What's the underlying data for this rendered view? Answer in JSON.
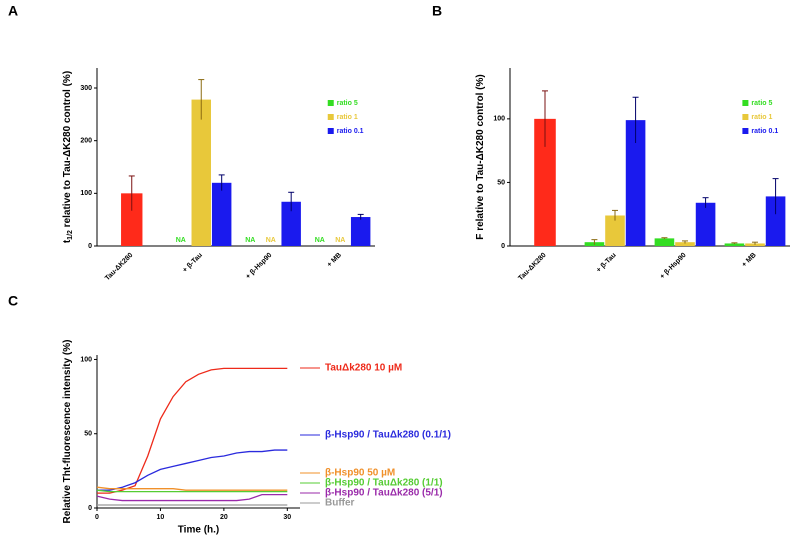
{
  "chart_data": [
    {
      "panel": "A",
      "type": "bar",
      "ylabel": "t",
      "ylabel_sub": "1/2",
      "ylabel_rest": " relative to Tau-ΔK280 control (%)",
      "categories": [
        "Tau-ΔK280",
        "+ β-Tau",
        "+ β-Hsp90",
        "+ MB"
      ],
      "control": {
        "value": 100,
        "error": 33,
        "color": "#ff2a1a"
      },
      "series": [
        {
          "name": "ratio 5",
          "color": "#33dd22",
          "values": [
            null,
            null,
            null,
            null
          ],
          "errors": [
            null,
            null,
            null,
            null
          ],
          "value_labels": [
            null,
            "NA",
            "NA",
            "NA"
          ]
        },
        {
          "name": "ratio 1",
          "color": "#e8c83a",
          "values": [
            null,
            278,
            null,
            null
          ],
          "errors": [
            null,
            38,
            null,
            null
          ],
          "value_labels": [
            null,
            null,
            "NA",
            "NA"
          ]
        },
        {
          "name": "ratio 0.1",
          "color": "#1a1aee",
          "values": [
            null,
            120,
            84,
            55
          ],
          "errors": [
            null,
            15,
            18,
            5
          ],
          "value_labels": [
            null,
            null,
            null,
            null
          ]
        }
      ],
      "ylim": [
        0,
        338
      ],
      "yticks": [
        0,
        100,
        200,
        300
      ]
    },
    {
      "panel": "B",
      "type": "bar",
      "ylabel": "F  relative to Tau-ΔK280 control (%)",
      "categories": [
        "Tau-ΔK280",
        "+ β-Tau",
        "+ β-Hsp90",
        "+ MB"
      ],
      "control": {
        "value": 100,
        "error": 22,
        "color": "#ff2a1a"
      },
      "series": [
        {
          "name": "ratio 5",
          "color": "#33dd22",
          "values": [
            null,
            3,
            6,
            2
          ],
          "errors": [
            null,
            2,
            0.5,
            0.5
          ]
        },
        {
          "name": "ratio 1",
          "color": "#e8c83a",
          "values": [
            null,
            24,
            3,
            2
          ],
          "errors": [
            null,
            4,
            1,
            1
          ]
        },
        {
          "name": "ratio 0.1",
          "color": "#1a1aee",
          "values": [
            null,
            99,
            34,
            39
          ],
          "errors": [
            null,
            18,
            4,
            14
          ]
        }
      ],
      "ylim": [
        0,
        140
      ],
      "yticks": [
        0,
        50,
        100
      ]
    },
    {
      "panel": "C",
      "type": "line",
      "xlabel": "Time (h.)",
      "ylabel": "Relative Tht-fluorescence intensity (%)",
      "x": [
        0,
        2,
        4,
        6,
        8,
        10,
        12,
        14,
        16,
        18,
        20,
        22,
        24,
        26,
        28,
        30
      ],
      "series": [
        {
          "name": "TauΔk280 10 µM",
          "color": "#ee2a1a",
          "values": [
            10,
            10,
            12,
            15,
            35,
            60,
            75,
            85,
            90,
            93,
            94,
            94,
            94,
            94,
            94,
            94
          ]
        },
        {
          "name": "β-Hsp90 / TauΔk280 (0.1/1)",
          "color": "#2a2add",
          "values": [
            12,
            12,
            14,
            17,
            22,
            26,
            28,
            30,
            32,
            34,
            35,
            37,
            38,
            38,
            39,
            39
          ]
        },
        {
          "name": "β-Hsp90 50 µM",
          "color": "#f0902a",
          "values": [
            14,
            13,
            13,
            13,
            13,
            13,
            13,
            12,
            12,
            12,
            12,
            12,
            12,
            12,
            12,
            12
          ]
        },
        {
          "name": "β-Hsp90 / TauΔk280 (1/1)",
          "color": "#55cc33",
          "values": [
            12,
            11,
            11,
            11,
            11,
            11,
            11,
            11,
            11,
            11,
            11,
            11,
            11,
            11,
            11,
            11
          ]
        },
        {
          "name": "β-Hsp90 / TauΔk280 (5/1)",
          "color": "#9a2aaa",
          "values": [
            8,
            6,
            5,
            5,
            5,
            5,
            5,
            5,
            5,
            5,
            5,
            5,
            6,
            9,
            9,
            9
          ]
        },
        {
          "name": "Buffer",
          "color": "#999999",
          "values": [
            2,
            2,
            2,
            2,
            2,
            2,
            2,
            2,
            2,
            2,
            2,
            2,
            2,
            2,
            2,
            2
          ]
        }
      ],
      "xlim": [
        0,
        32
      ],
      "xticks": [
        0,
        10,
        20,
        30
      ],
      "ylim": [
        0,
        103
      ],
      "yticks": [
        0,
        50,
        100
      ]
    }
  ]
}
